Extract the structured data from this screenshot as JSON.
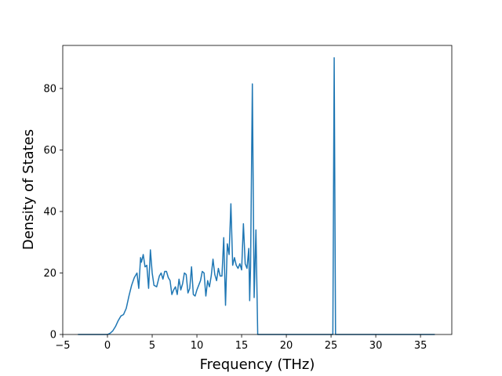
{
  "chart_data": {
    "type": "line",
    "title": "",
    "xlabel": "Frequency (THz)",
    "ylabel": "Density of States",
    "xlim": [
      -5.0,
      38.5
    ],
    "ylim": [
      0,
      94
    ],
    "grid": false,
    "legend": "none",
    "x_ticks": [
      -5,
      0,
      5,
      10,
      15,
      20,
      25,
      30,
      35
    ],
    "y_ticks": [
      0,
      20,
      40,
      60,
      80
    ],
    "series": [
      {
        "color": "#1f77b4",
        "x": [
          -3.3,
          0.0,
          0.3,
          0.6,
          0.9,
          1.2,
          1.5,
          1.8,
          2.1,
          2.4,
          2.7,
          3.0,
          3.3,
          3.5,
          3.7,
          3.8,
          4.0,
          4.2,
          4.4,
          4.6,
          4.8,
          5.0,
          5.2,
          5.5,
          5.8,
          6.0,
          6.2,
          6.4,
          6.6,
          6.8,
          7.0,
          7.2,
          7.4,
          7.6,
          7.8,
          8.0,
          8.2,
          8.4,
          8.6,
          8.8,
          9.0,
          9.2,
          9.4,
          9.6,
          9.8,
          10.0,
          10.2,
          10.4,
          10.6,
          10.8,
          11.0,
          11.2,
          11.4,
          11.6,
          11.8,
          12.0,
          12.2,
          12.4,
          12.6,
          12.8,
          13.0,
          13.2,
          13.4,
          13.6,
          13.8,
          14.0,
          14.2,
          14.4,
          14.6,
          14.8,
          15.0,
          15.2,
          15.4,
          15.6,
          15.8,
          15.9,
          16.0,
          16.2,
          16.4,
          16.6,
          16.8,
          17.0,
          25.0,
          25.2,
          25.35,
          25.5,
          25.7,
          36.6
        ],
        "y": [
          0,
          0,
          0.4,
          1.2,
          2.6,
          4.5,
          6.0,
          6.5,
          8.5,
          12.5,
          16.0,
          18.5,
          20.0,
          15.0,
          25.0,
          23.5,
          26.0,
          22.0,
          22.5,
          15.0,
          27.5,
          20.0,
          16.0,
          15.5,
          19.0,
          20.0,
          18.0,
          20.5,
          20.5,
          18.5,
          17.5,
          13.0,
          14.5,
          15.5,
          13.0,
          18.0,
          14.5,
          16.5,
          20.0,
          19.5,
          13.5,
          15.0,
          22.0,
          13.0,
          12.5,
          14.5,
          16.0,
          17.5,
          20.5,
          20.0,
          12.5,
          17.5,
          15.5,
          19.0,
          24.5,
          19.5,
          17.5,
          21.5,
          19.0,
          19.0,
          31.5,
          9.5,
          29.5,
          26.0,
          42.5,
          22.5,
          25.0,
          22.5,
          21.5,
          23.0,
          21.0,
          36.0,
          23.0,
          21.5,
          28.0,
          11.0,
          22.0,
          81.5,
          12.0,
          34.0,
          0.0,
          0.0,
          0.0,
          0.0,
          90.0,
          0.0,
          0.0,
          0.0
        ]
      }
    ]
  }
}
